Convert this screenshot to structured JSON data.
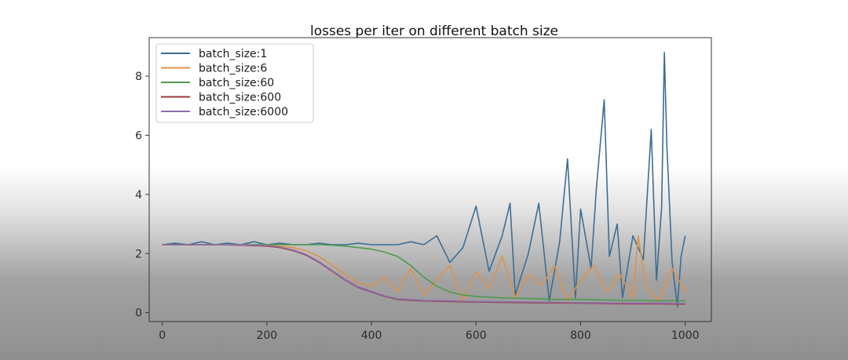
{
  "chart_data": {
    "type": "line",
    "title": "losses per iter on different batch size",
    "xlabel": "",
    "ylabel": "",
    "xlim": [
      -25,
      1050
    ],
    "ylim": [
      -0.3,
      9.3
    ],
    "xticks": [
      0,
      200,
      400,
      600,
      800,
      1000
    ],
    "yticks": [
      0,
      2,
      4,
      6,
      8
    ],
    "grid": false,
    "legend_position": "top-left",
    "series": [
      {
        "name": "batch_size:1",
        "color": "#3b6e96",
        "x": [
          0,
          25,
          50,
          75,
          100,
          125,
          150,
          175,
          200,
          225,
          250,
          275,
          300,
          325,
          350,
          375,
          400,
          425,
          450,
          475,
          500,
          525,
          550,
          575,
          600,
          625,
          650,
          665,
          675,
          700,
          720,
          740,
          760,
          775,
          790,
          800,
          820,
          830,
          845,
          855,
          870,
          880,
          900,
          920,
          935,
          945,
          955,
          960,
          965,
          975,
          985,
          992,
          1000
        ],
        "values": [
          2.3,
          2.35,
          2.3,
          2.4,
          2.3,
          2.35,
          2.3,
          2.4,
          2.3,
          2.35,
          2.3,
          2.3,
          2.35,
          2.3,
          2.3,
          2.35,
          2.3,
          2.3,
          2.3,
          2.4,
          2.3,
          2.6,
          1.7,
          2.2,
          3.6,
          1.4,
          2.6,
          3.7,
          0.6,
          2.0,
          3.7,
          0.4,
          2.4,
          5.2,
          0.5,
          3.5,
          1.5,
          4.2,
          7.2,
          1.9,
          3.0,
          0.5,
          2.6,
          1.8,
          6.2,
          1.1,
          3.6,
          8.8,
          5.6,
          1.7,
          0.2,
          1.9,
          2.6
        ]
      },
      {
        "name": "batch_size:6",
        "color": "#e0914a",
        "x": [
          0,
          50,
          100,
          150,
          200,
          225,
          250,
          275,
          300,
          325,
          350,
          375,
          400,
          425,
          450,
          475,
          500,
          525,
          550,
          575,
          600,
          625,
          650,
          675,
          700,
          725,
          750,
          775,
          800,
          825,
          850,
          875,
          900,
          910,
          925,
          950,
          975,
          1000
        ],
        "values": [
          2.3,
          2.3,
          2.3,
          2.3,
          2.3,
          2.25,
          2.2,
          2.1,
          1.9,
          1.6,
          1.3,
          1.0,
          0.9,
          1.2,
          0.7,
          1.5,
          0.6,
          1.1,
          1.6,
          0.4,
          1.4,
          0.8,
          1.9,
          0.5,
          1.3,
          0.9,
          1.6,
          0.4,
          1.1,
          1.6,
          0.7,
          1.3,
          0.5,
          2.6,
          0.9,
          0.4,
          1.5,
          0.7
        ]
      },
      {
        "name": "batch_size:60",
        "color": "#4f9a4f",
        "x": [
          0,
          50,
          100,
          150,
          200,
          250,
          300,
          325,
          350,
          375,
          400,
          425,
          450,
          475,
          500,
          525,
          550,
          575,
          600,
          650,
          700,
          750,
          800,
          850,
          900,
          950,
          1000
        ],
        "values": [
          2.3,
          2.3,
          2.3,
          2.3,
          2.3,
          2.3,
          2.3,
          2.28,
          2.25,
          2.2,
          2.15,
          2.05,
          1.9,
          1.6,
          1.2,
          0.9,
          0.7,
          0.6,
          0.55,
          0.5,
          0.48,
          0.45,
          0.45,
          0.43,
          0.42,
          0.4,
          0.4
        ]
      },
      {
        "name": "batch_size:600",
        "color": "#a03a3a",
        "x": [
          0,
          50,
          100,
          150,
          200,
          225,
          250,
          275,
          300,
          325,
          350,
          375,
          400,
          425,
          450,
          475,
          500,
          550,
          600,
          650,
          700,
          750,
          800,
          850,
          900,
          950,
          1000
        ],
        "values": [
          2.3,
          2.3,
          2.3,
          2.28,
          2.25,
          2.2,
          2.1,
          1.95,
          1.7,
          1.4,
          1.1,
          0.85,
          0.7,
          0.55,
          0.45,
          0.42,
          0.4,
          0.38,
          0.36,
          0.35,
          0.34,
          0.33,
          0.32,
          0.31,
          0.3,
          0.3,
          0.29
        ]
      },
      {
        "name": "batch_size:6000",
        "color": "#8a6fae",
        "x": [
          0,
          50,
          100,
          150,
          200,
          225,
          250,
          275,
          300,
          325,
          350,
          375,
          400,
          425,
          450,
          475,
          500,
          550,
          600,
          650,
          700,
          750,
          800,
          850,
          900,
          950,
          1000
        ],
        "values": [
          2.3,
          2.3,
          2.3,
          2.29,
          2.27,
          2.22,
          2.12,
          1.97,
          1.72,
          1.42,
          1.12,
          0.87,
          0.72,
          0.57,
          0.47,
          0.44,
          0.42,
          0.4,
          0.38,
          0.37,
          0.36,
          0.35,
          0.34,
          0.33,
          0.32,
          0.32,
          0.31
        ]
      }
    ]
  }
}
